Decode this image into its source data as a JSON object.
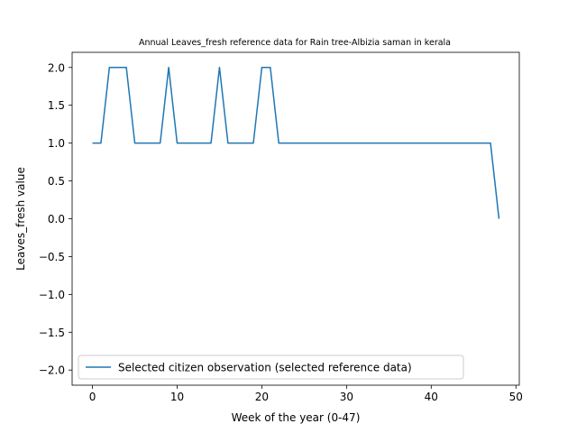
{
  "chart_data": {
    "type": "line",
    "title": "Annual Leaves_fresh reference data for Rain tree-Albizia saman in kerala",
    "xlabel": "Week of the year (0-47)",
    "ylabel": "Leaves_fresh value",
    "xlim": [
      -2.4,
      50.4
    ],
    "ylim": [
      -2.2,
      2.2
    ],
    "xticks": [
      0,
      10,
      20,
      30,
      40,
      50
    ],
    "yticks": [
      -2.0,
      -1.5,
      -1.0,
      -0.5,
      0.0,
      0.5,
      1.0,
      1.5,
      2.0
    ],
    "xtick_labels": [
      "0",
      "10",
      "20",
      "30",
      "40",
      "50"
    ],
    "ytick_labels": [
      "−2.0",
      "−1.5",
      "−1.0",
      "−0.5",
      "0.0",
      "0.5",
      "1.0",
      "1.5",
      "2.0"
    ],
    "legend_position": "lower-left",
    "series": [
      {
        "name": "Selected citizen observation (selected reference data)",
        "color": "#1f77b4",
        "x": [
          0,
          1,
          2,
          3,
          4,
          5,
          6,
          7,
          8,
          9,
          10,
          11,
          12,
          13,
          14,
          15,
          16,
          17,
          18,
          19,
          20,
          21,
          22,
          23,
          24,
          25,
          26,
          27,
          28,
          29,
          30,
          31,
          32,
          33,
          34,
          35,
          36,
          37,
          38,
          39,
          40,
          41,
          42,
          43,
          44,
          45,
          46,
          47,
          48
        ],
        "y": [
          1,
          1,
          2,
          2,
          2,
          1,
          1,
          1,
          1,
          2,
          1,
          1,
          1,
          1,
          1,
          2,
          1,
          1,
          1,
          1,
          2,
          2,
          1,
          1,
          1,
          1,
          1,
          1,
          1,
          1,
          1,
          1,
          1,
          1,
          1,
          1,
          1,
          1,
          1,
          1,
          1,
          1,
          1,
          1,
          1,
          1,
          1,
          1,
          0
        ]
      }
    ]
  }
}
